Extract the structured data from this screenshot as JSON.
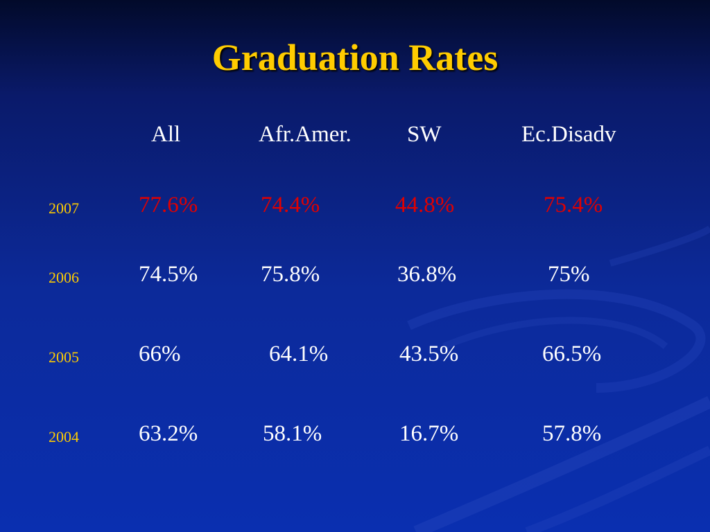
{
  "slide": {
    "title": "Graduation Rates"
  },
  "table": {
    "columns": [
      "All",
      "Afr.Amer.",
      "SW",
      "Ec.Disadv"
    ],
    "rows": [
      {
        "year": "2007",
        "values": [
          "77.6%",
          "74.4%",
          "44.8%",
          "75.4%"
        ],
        "highlight_color": "#e00000"
      },
      {
        "year": "2006",
        "values": [
          "74.5%",
          "75.8%",
          "36.8%",
          "75%"
        ]
      },
      {
        "year": "2005",
        "values": [
          "66%",
          "64.1%",
          "43.5%",
          "66.5%"
        ]
      },
      {
        "year": "2004",
        "values": [
          "63.2%",
          "58.1%",
          "16.7%",
          "57.8%"
        ]
      }
    ]
  },
  "colors": {
    "title": "#ffcc00",
    "year_labels": "#ffcc00",
    "text": "#ffffff",
    "background": "#0a2a9a"
  }
}
